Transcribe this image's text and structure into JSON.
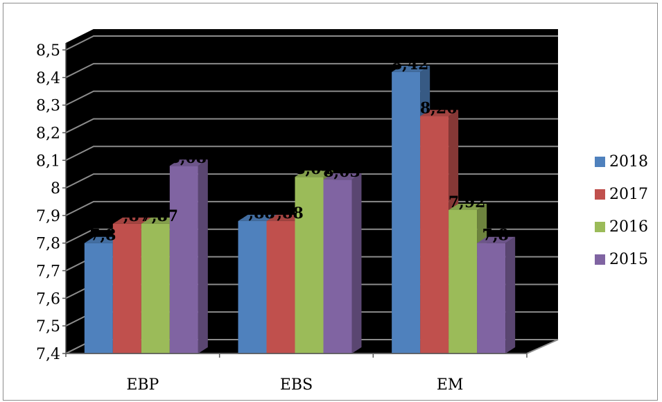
{
  "chart_data": {
    "type": "bar",
    "categories": [
      "EBP",
      "EBS",
      "EM"
    ],
    "series": [
      {
        "name": "2018",
        "color": "#4f81bd",
        "values": [
          7.8,
          7.88,
          8.42
        ]
      },
      {
        "name": "2017",
        "color": "#c0504d",
        "values": [
          7.87,
          7.88,
          8.26
        ]
      },
      {
        "name": "2016",
        "color": "#9bbb59",
        "values": [
          7.87,
          8.04,
          7.92
        ]
      },
      {
        "name": "2015",
        "color": "#8064a2",
        "values": [
          8.08,
          8.03,
          7.8
        ]
      }
    ],
    "y_ticks": [
      "7,4",
      "7,5",
      "7,6",
      "7,7",
      "7,8",
      "7,9",
      "8",
      "8,1",
      "8,2",
      "8,3",
      "8,4",
      "8,5"
    ],
    "ylim": [
      7.4,
      8.5
    ],
    "data_labels": [
      {
        "text": "7,8",
        "category": 0,
        "series": 0
      },
      {
        "text": "7,87",
        "category": 0,
        "series": 1
      },
      {
        "text": "7,87",
        "category": 0,
        "series": 2
      },
      {
        "text": "8,08",
        "category": 0,
        "series": 3
      },
      {
        "text": "7,88",
        "category": 1,
        "series": 0
      },
      {
        "text": "7,88",
        "category": 1,
        "series": 1
      },
      {
        "text": "8,04",
        "category": 1,
        "series": 2
      },
      {
        "text": "8,03",
        "category": 1,
        "series": 3
      },
      {
        "text": "8,42",
        "category": 2,
        "series": 0
      },
      {
        "text": "8,26",
        "category": 2,
        "series": 1
      },
      {
        "text": "7,92",
        "category": 2,
        "series": 2
      },
      {
        "text": "7,8",
        "category": 2,
        "series": 3
      }
    ],
    "plot_background": "#000000",
    "gridline_color": "#8c8c8c",
    "grid": true,
    "legend_position": "right"
  }
}
